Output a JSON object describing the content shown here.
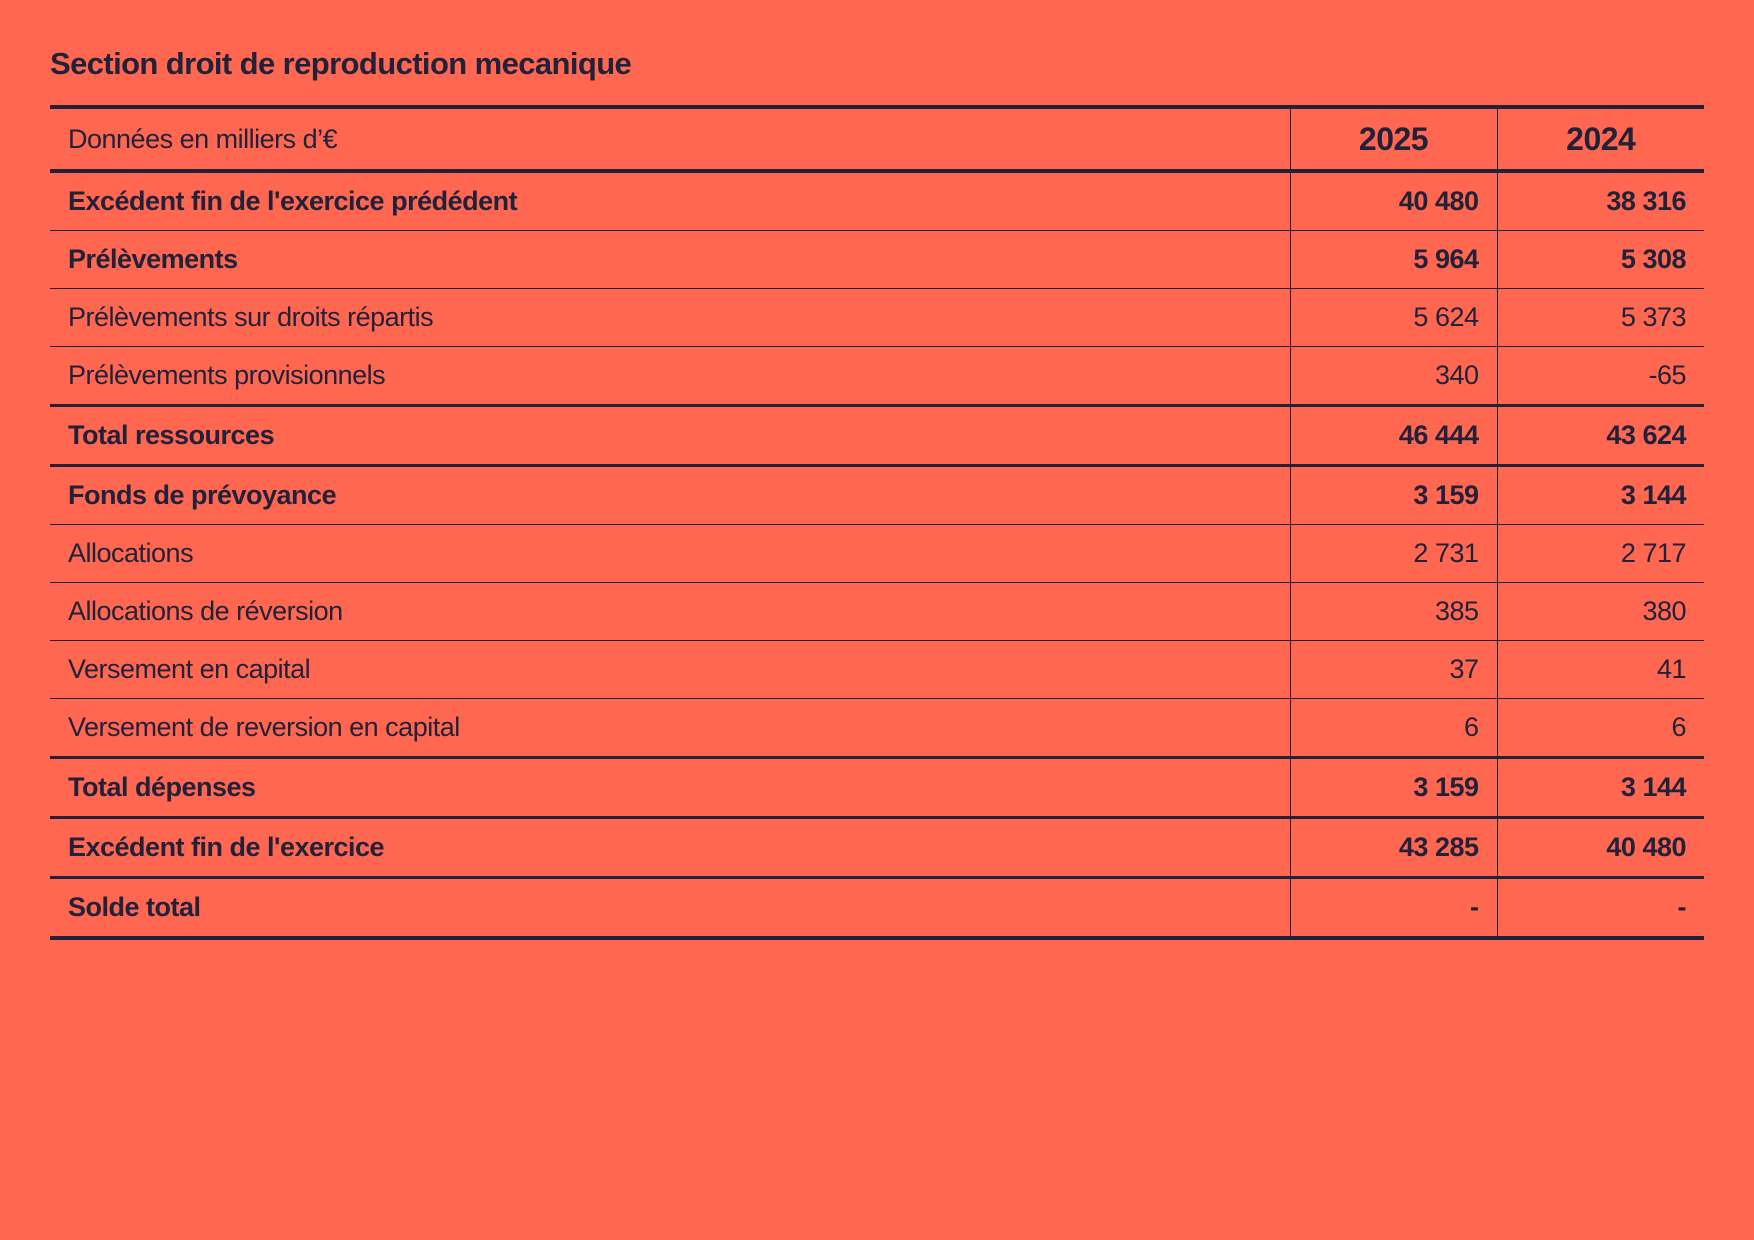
{
  "title": "Section droit de reproduction mecanique",
  "table": {
    "header": {
      "label": "Données en milliers d’€",
      "years": [
        "2025",
        "2024"
      ]
    },
    "rows": [
      {
        "label": "Excédent fin de l'exercice prédédent",
        "y2025": "40 480",
        "y2024": "38 316",
        "style": "bold"
      },
      {
        "label": "Prélèvements",
        "y2025": "5 964",
        "y2024": "5 308",
        "style": "bold"
      },
      {
        "label": "Prélèvements sur droits répartis",
        "y2025": "5 624",
        "y2024": "5 373",
        "style": "normal"
      },
      {
        "label": "Prélèvements provisionnels",
        "y2025": "340",
        "y2024": "-65",
        "style": "normal"
      },
      {
        "label": "Total ressources",
        "y2025": "46 444",
        "y2024": "43 624",
        "style": "bold"
      },
      {
        "label": "Fonds de prévoyance",
        "y2025": "3 159",
        "y2024": "3 144",
        "style": "bold"
      },
      {
        "label": "Allocations",
        "y2025": "2 731",
        "y2024": "2 717",
        "style": "normal"
      },
      {
        "label": "Allocations de réversion",
        "y2025": "385",
        "y2024": "380",
        "style": "normal"
      },
      {
        "label": "Versement en capital",
        "y2025": "37",
        "y2024": "41",
        "style": "normal"
      },
      {
        "label": "Versement de reversion en capital",
        "y2025": "6",
        "y2024": "6",
        "style": "normal"
      },
      {
        "label": "Total dépenses",
        "y2025": "3 159",
        "y2024": "3 144",
        "style": "bold"
      },
      {
        "label": "Excédent fin de l'exercice",
        "y2025": "43 285",
        "y2024": "40 480",
        "style": "bold"
      },
      {
        "label": "Solde total",
        "y2025": "-",
        "y2024": "-",
        "style": "bold"
      }
    ]
  },
  "colors": {
    "background": "#ff6751",
    "text": "#22213a"
  }
}
